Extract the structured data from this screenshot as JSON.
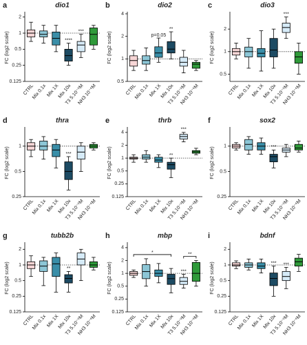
{
  "chart_data": [
    {
      "type": "box",
      "label": "a",
      "title": "dio1",
      "ylabel": "FC (log2 scale)",
      "yscale": "log2",
      "refline": 1,
      "categories": [
        "CTRL",
        "Mix 0.1x",
        "Mix 1X",
        "Mix 10x",
        "T3 5.10⁻⁹M",
        "NH3 10⁻⁶M"
      ],
      "colors": [
        "#f7d6d6",
        "#8cc6d6",
        "#3a8ea8",
        "#1d4b63",
        "#d6ebf8",
        "#2f9a3a"
      ],
      "boxes": [
        [
          0.7,
          0.85,
          1,
          1.15,
          1.6
        ],
        [
          0.65,
          0.85,
          0.95,
          1.1,
          1.4
        ],
        [
          0.45,
          0.6,
          0.8,
          1.05,
          1.4
        ],
        [
          0.25,
          0.3,
          0.38,
          0.5,
          0.65
        ],
        [
          0.35,
          0.45,
          0.6,
          0.7,
          0.95
        ],
        [
          0.5,
          0.6,
          0.95,
          1.25,
          1.4
        ]
      ],
      "annotations": [
        {
          "text": "****",
          "index": 3
        },
        {
          "text": "***",
          "index": 4
        }
      ],
      "ylim": [
        0.125,
        2.3
      ],
      "yticks": [
        0.125,
        0.25,
        0.5,
        1,
        2
      ]
    },
    {
      "type": "box",
      "label": "b",
      "title": "dio2",
      "ylabel": "FC (log2 scale)",
      "yscale": "log2",
      "refline": 1,
      "categories": [
        "CTRL",
        "Mix 0.1x",
        "Mix 1X",
        "Mix 10x",
        "T3 5.10⁻⁹M",
        "NH3 10⁻⁶M"
      ],
      "colors": [
        "#f7d6d6",
        "#8cc6d6",
        "#3a8ea8",
        "#1d4b63",
        "#d6ebf8",
        "#2f9a3a"
      ],
      "boxes": [
        [
          0.7,
          0.8,
          0.95,
          1.1,
          1.3
        ],
        [
          0.7,
          0.85,
          0.95,
          1.1,
          1.4
        ],
        [
          0.9,
          1.05,
          1.2,
          1.45,
          1.9
        ],
        [
          1,
          1.2,
          1.35,
          1.7,
          2.3
        ],
        [
          0.65,
          0.8,
          0.9,
          1.05,
          1.3
        ],
        [
          0.7,
          0.75,
          0.85,
          0.9,
          0.95
        ]
      ],
      "annotations": [
        {
          "text": "p=0.05",
          "index": 2
        },
        {
          "text": "**",
          "index": 3
        }
      ],
      "ylim": [
        0.5,
        4
      ],
      "yticks": [
        0.5,
        1,
        2,
        4
      ]
    },
    {
      "type": "box",
      "label": "c",
      "title": "dio3",
      "ylabel": "FC (log2 scale)",
      "yscale": "log2",
      "refline": 1,
      "categories": [
        "CTRL",
        "Mix 0.1x",
        "Mix 1X",
        "Mix 10x",
        "T3 5.10⁻⁹M",
        "NH3 10⁻⁶M"
      ],
      "colors": [
        "#f7d6d6",
        "#8cc6d6",
        "#3a8ea8",
        "#1d4b63",
        "#d6ebf8",
        "#2f9a3a"
      ],
      "boxes": [
        [
          0.8,
          0.9,
          1,
          1.1,
          1.3
        ],
        [
          0.6,
          0.85,
          1,
          1.15,
          1.5
        ],
        [
          0.55,
          0.85,
          0.95,
          1.1,
          1.9
        ],
        [
          0.6,
          0.85,
          1.05,
          1.5,
          2
        ],
        [
          1.5,
          1.8,
          2.1,
          2.4,
          2.9
        ],
        [
          0.5,
          0.7,
          0.85,
          1,
          1.3
        ]
      ],
      "annotations": [
        {
          "text": "***",
          "index": 4
        }
      ],
      "ylim": [
        0.4,
        3.2
      ],
      "yticks": [
        0.5,
        1,
        2
      ]
    },
    {
      "type": "box",
      "label": "d",
      "title": "thra",
      "ylabel": "FC (log2 scale)",
      "yscale": "log2",
      "refline": 1,
      "categories": [
        "CTRL",
        "Mix 0.1x",
        "Mix 1X",
        "Mix 10x",
        "T3 5.10⁻⁹M",
        "NH3 10⁻⁶M"
      ],
      "colors": [
        "#f7d6d6",
        "#8cc6d6",
        "#3a8ea8",
        "#1d4b63",
        "#d6ebf8",
        "#2f9a3a"
      ],
      "boxes": [
        [
          0.75,
          0.9,
          1,
          1.1,
          1.2
        ],
        [
          0.7,
          0.9,
          1,
          1.15,
          1.3
        ],
        [
          0.55,
          0.75,
          0.9,
          1.05,
          1.2
        ],
        [
          0.3,
          0.4,
          0.5,
          0.65,
          0.75
        ],
        [
          0.5,
          0.7,
          0.85,
          1,
          1.1
        ],
        [
          0.9,
          0.95,
          1,
          1.05,
          1.1
        ]
      ],
      "annotations": [
        {
          "text": "***",
          "index": 3
        }
      ],
      "ylim": [
        0.25,
        1.6
      ],
      "yticks": [
        0.25,
        0.5,
        1
      ]
    },
    {
      "type": "box",
      "label": "e",
      "title": "thrb",
      "ylabel": "FC (log2 scale)",
      "yscale": "log2",
      "refline": 1,
      "categories": [
        "CTRL",
        "Mix 0.1x",
        "Mix 1X",
        "Mix 10x",
        "T3 5.10⁻⁹M",
        "NH3 10⁻⁶M"
      ],
      "colors": [
        "#f7d6d6",
        "#8cc6d6",
        "#3a8ea8",
        "#1d4b63",
        "#d6ebf8",
        "#2f9a3a"
      ],
      "boxes": [
        [
          0.8,
          0.95,
          1,
          1.05,
          1.2
        ],
        [
          0.8,
          0.95,
          1.05,
          1.2,
          1.5
        ],
        [
          0.6,
          0.8,
          0.9,
          1.05,
          1.2
        ],
        [
          0.35,
          0.55,
          0.7,
          0.8,
          1
        ],
        [
          2.4,
          2.8,
          3.2,
          3.6,
          4
        ],
        [
          1.2,
          1.3,
          1.4,
          1.5,
          1.7
        ]
      ],
      "annotations": [
        {
          "text": "**",
          "index": 3
        },
        {
          "text": "***",
          "index": 4
        }
      ],
      "ylim": [
        0.125,
        4.8
      ],
      "yticks": [
        0.125,
        0.25,
        0.5,
        1,
        2,
        4
      ]
    },
    {
      "type": "box",
      "label": "f",
      "title": "sox2",
      "ylabel": "FC (log2 scale)",
      "yscale": "log2",
      "refline": 1,
      "categories": [
        "CTRL",
        "Mix 0.1x",
        "Mix 1X",
        "Mix 10x",
        "T3 5.10⁻⁹M",
        "NH3 10⁻⁶M"
      ],
      "colors": [
        "#f7d6d6",
        "#8cc6d6",
        "#3a8ea8",
        "#1d4b63",
        "#d6ebf8",
        "#2f9a3a"
      ],
      "boxes": [
        [
          0.9,
          0.95,
          1,
          1.05,
          1.1
        ],
        [
          0.8,
          0.9,
          1.05,
          1.2,
          1.3
        ],
        [
          0.8,
          0.9,
          1,
          1.1,
          1.25
        ],
        [
          0.55,
          0.65,
          0.75,
          0.8,
          0.9
        ],
        [
          0.75,
          0.85,
          0.9,
          0.95,
          1.05
        ],
        [
          0.85,
          0.9,
          0.95,
          1.05,
          1.15
        ]
      ],
      "annotations": [
        {
          "text": "***",
          "index": 3
        }
      ],
      "ylim": [
        0.25,
        1.6
      ],
      "yticks": [
        0.25,
        0.5,
        1
      ]
    },
    {
      "type": "box",
      "label": "g",
      "title": "tubb2b",
      "ylabel": "FC (log2 scale)",
      "yscale": "log2",
      "refline": 1,
      "categories": [
        "CTRL",
        "Mix 0.1x",
        "Mix 1X",
        "Mix 10x",
        "T3 5.10⁻⁹M",
        "NH3 10⁻⁶M"
      ],
      "colors": [
        "#f7d6d6",
        "#8cc6d6",
        "#3a8ea8",
        "#1d4b63",
        "#d6ebf8",
        "#2f9a3a"
      ],
      "boxes": [
        [
          0.6,
          0.85,
          1,
          1.15,
          1.5
        ],
        [
          0.4,
          0.75,
          0.95,
          1.2,
          1.4
        ],
        [
          0.3,
          0.6,
          1.05,
          1.4,
          1.7
        ],
        [
          0.3,
          0.45,
          0.55,
          0.65,
          0.75
        ],
        [
          0.5,
          1,
          1.3,
          1.7,
          2
        ],
        [
          0.8,
          0.9,
          1,
          1.15,
          1.4
        ]
      ],
      "annotations": [
        {
          "text": "**",
          "index": 3
        }
      ],
      "ylim": [
        0.125,
        2.5
      ],
      "yticks": [
        0.125,
        0.25,
        0.5,
        1,
        2
      ]
    },
    {
      "type": "box",
      "label": "h",
      "title": "mbp",
      "ylabel": "FC (log2 scale)",
      "yscale": "log2",
      "refline": 1,
      "categories": [
        "CTRL",
        "Mix 0.1x",
        "Mix 1X",
        "Mix 10x",
        "T3 5.10⁻⁹M",
        "NH3 10⁻⁶M"
      ],
      "colors": [
        "#f7d6d6",
        "#8cc6d6",
        "#3a8ea8",
        "#1d4b63",
        "#d6ebf8",
        "#2f9a3a"
      ],
      "boxes": [
        [
          0.8,
          0.9,
          1,
          1.1,
          1.2
        ],
        [
          0.5,
          0.75,
          1.1,
          1.6,
          2.2
        ],
        [
          0.6,
          0.85,
          1,
          1.2,
          1.7
        ],
        [
          0.35,
          0.55,
          0.75,
          0.95,
          1.3
        ],
        [
          0.45,
          0.55,
          0.65,
          0.8,
          0.95
        ],
        [
          0.5,
          0.65,
          1,
          1.8,
          2
        ]
      ],
      "annotations": [
        {
          "text": "*",
          "index": 0,
          "to": 3
        },
        {
          "text": "***",
          "index": 4
        },
        {
          "text": "**",
          "index": 4,
          "to": 5
        }
      ],
      "ylim": [
        0.125,
        4.8
      ],
      "yticks": [
        0.125,
        0.25,
        0.5,
        1,
        2,
        4
      ]
    },
    {
      "type": "box",
      "label": "i",
      "title": "bdnf",
      "ylabel": "FC (log2 scale)",
      "yscale": "log2",
      "refline": 1,
      "categories": [
        "CTRL",
        "Mix 0.1x",
        "Mix 1X",
        "Mix 10x",
        "T3 5.10⁻⁹M",
        "NH3 10⁻⁶M"
      ],
      "colors": [
        "#f7d6d6",
        "#8cc6d6",
        "#3a8ea8",
        "#1d4b63",
        "#d6ebf8",
        "#2f9a3a"
      ],
      "boxes": [
        [
          0.85,
          0.95,
          1,
          1.1,
          1.2
        ],
        [
          0.8,
          0.9,
          1,
          1.1,
          1.3
        ],
        [
          0.7,
          0.85,
          0.95,
          1.1,
          1.3
        ],
        [
          0.25,
          0.4,
          0.55,
          0.7,
          0.95
        ],
        [
          0.35,
          0.5,
          0.6,
          0.75,
          0.9
        ],
        [
          0.75,
          0.95,
          1.15,
          1.35,
          1.6
        ]
      ],
      "annotations": [
        {
          "text": "***",
          "index": 3
        },
        {
          "text": "***",
          "index": 4
        }
      ],
      "ylim": [
        0.125,
        2.5
      ],
      "yticks": [
        0.125,
        0.25,
        0.5,
        1,
        2
      ]
    }
  ]
}
